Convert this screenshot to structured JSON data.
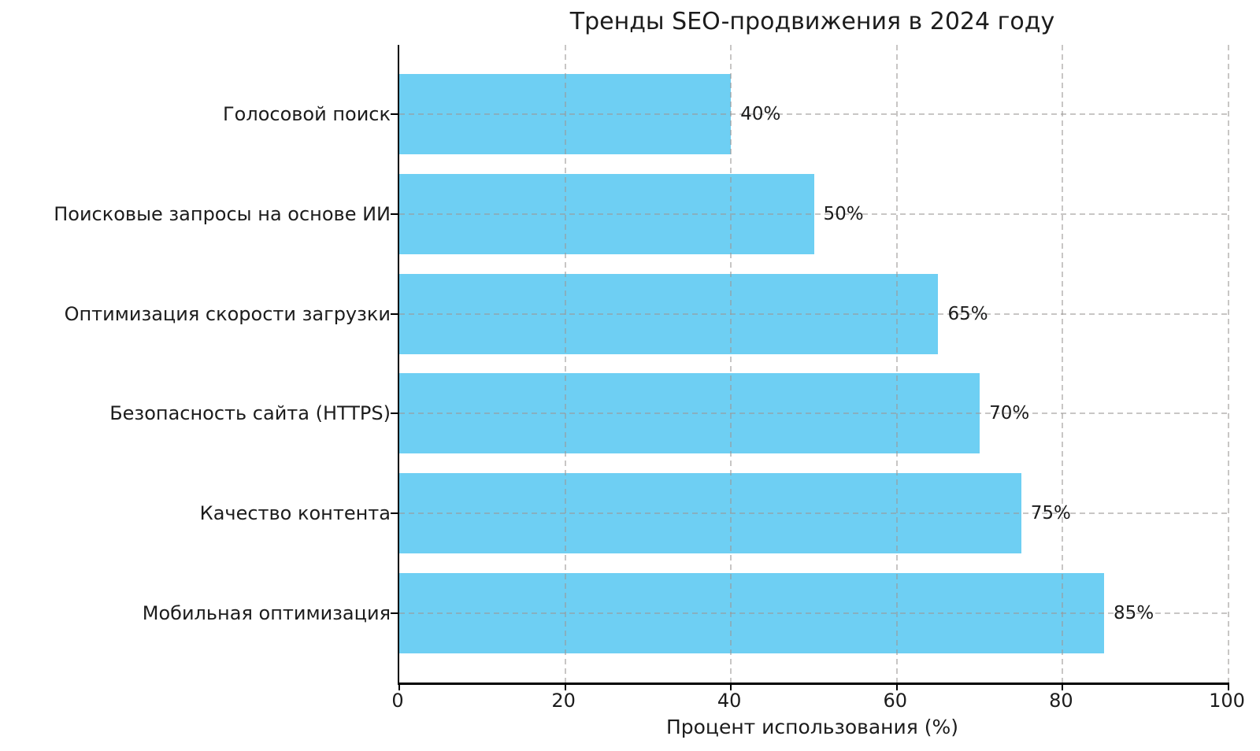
{
  "chart_data": {
    "type": "bar",
    "orientation": "horizontal",
    "title": "Тренды SEO-продвижения в 2024 году",
    "xlabel": "Процент использования (%)",
    "ylabel": "",
    "categories": [
      "Голосовой поиск",
      "Поисковые запросы на основе ИИ",
      "Оптимизация скорости загрузки",
      "Безопасность сайта (HTTPS)",
      "Качество контента",
      "Мобильная оптимизация"
    ],
    "values": [
      40,
      50,
      65,
      70,
      75,
      85
    ],
    "value_labels": [
      "40%",
      "50%",
      "65%",
      "70%",
      "75%",
      "85%"
    ],
    "x_ticks": [
      0,
      20,
      40,
      60,
      80,
      100
    ],
    "xlim": [
      0,
      100
    ],
    "bar_color": "#6ECFF3",
    "grid_color": "#9B9795",
    "grid_style": "dashed-both-axes-over-bars",
    "background": "#FFFFFF",
    "legend": "none"
  }
}
